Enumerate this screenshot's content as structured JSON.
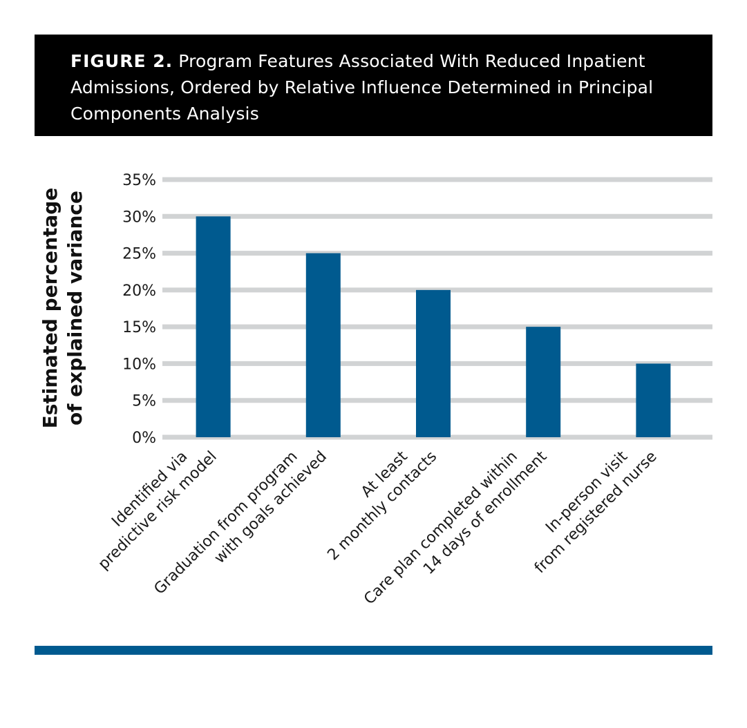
{
  "header": {
    "figure_label": "FIGURE 2.",
    "title": "Program Features Associated With Reduced Inpatient Admissions, Ordered by Relative Influence Determined in Principal Components Analysis"
  },
  "colors": {
    "bar": "#005a8f",
    "grid": "#d1d3d4",
    "header_bg": "#000000",
    "accent_bar": "#005a8f"
  },
  "chart_data": {
    "type": "bar",
    "title": "Program Features Associated With Reduced Inpatient Admissions, Ordered by Relative Influence Determined in Principal Components Analysis",
    "xlabel": "",
    "ylabel": "Estimated percentage of explained variance",
    "ylabel_lines": [
      "Estimated percentage",
      "of explained variance"
    ],
    "categories": [
      "Identified via predictive risk model",
      "Graduation from program with goals achieved",
      "At least 2 monthly contacts",
      "Care plan completed within 14 days of enrollment",
      "In-person visit from registered nurse"
    ],
    "category_lines": [
      [
        "Identified via",
        "predictive risk model"
      ],
      [
        "Graduation from program",
        "with goals achieved"
      ],
      [
        "At least",
        "2 monthly contacts"
      ],
      [
        "Care plan completed within",
        "14 days of enrollment"
      ],
      [
        "In-person visit",
        "from registered nurse"
      ]
    ],
    "values": [
      30,
      25,
      20,
      15,
      10
    ],
    "ylim": [
      0,
      35
    ],
    "yticks": [
      0,
      5,
      10,
      15,
      20,
      25,
      30,
      35
    ],
    "ytick_labels": [
      "0%",
      "5%",
      "10%",
      "15%",
      "20%",
      "25%",
      "30%",
      "35%"
    ],
    "grid": true,
    "legend": "none"
  }
}
